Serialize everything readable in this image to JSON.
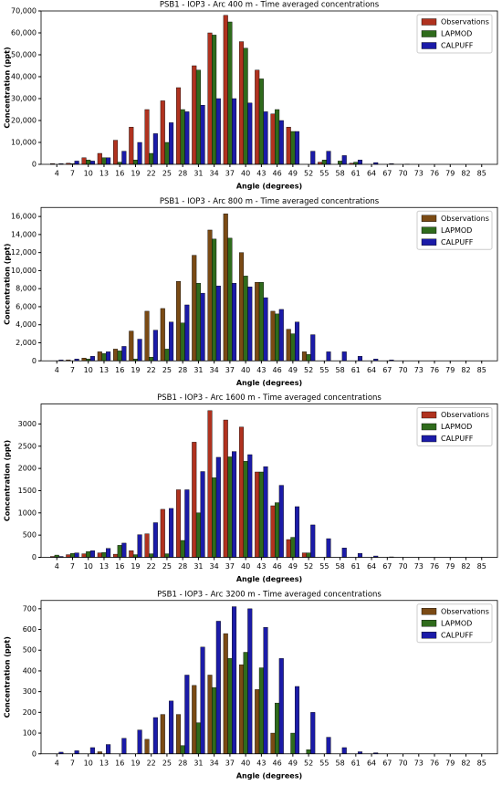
{
  "chart_data": [
    {
      "type": "bar",
      "title": "PSB1 - IOP3 - Arc 400 m - Time averaged concentrations",
      "xlabel": "Angle (degrees)",
      "ylabel": "Concentration (ppt)",
      "legend": "upper right",
      "categories": [
        "4",
        "7",
        "10",
        "13",
        "16",
        "19",
        "22",
        "25",
        "28",
        "31",
        "34",
        "37",
        "40",
        "43",
        "46",
        "49",
        "52",
        "55",
        "58",
        "61",
        "64",
        "67",
        "70",
        "73",
        "76",
        "79",
        "82",
        "85"
      ],
      "ylim": [
        0,
        70000
      ],
      "yticks": [
        0,
        {
          "value": 10000,
          "label": "10,000"
        },
        {
          "value": 20000,
          "label": "20,000"
        },
        {
          "value": 30000,
          "label": "30,000"
        },
        {
          "value": 40000,
          "label": "40,000"
        },
        {
          "value": 50000,
          "label": "50,000"
        },
        {
          "value": 60000,
          "label": "60,000"
        },
        {
          "value": 70000,
          "label": "70,000"
        }
      ],
      "series": [
        {
          "name": "Observations",
          "color": "#b0321f",
          "values": [
            300,
            500,
            3000,
            5000,
            11000,
            17000,
            25000,
            29000,
            35000,
            45000,
            60000,
            68000,
            56000,
            43000,
            23000,
            17000,
            0,
            1000,
            0,
            500,
            0,
            0,
            0,
            0,
            0,
            0,
            0,
            0
          ]
        },
        {
          "name": "LAPMOD",
          "color": "#2f6b1c",
          "values": [
            0,
            300,
            2000,
            3000,
            1000,
            2000,
            5000,
            10000,
            25000,
            43000,
            59000,
            65000,
            53000,
            39000,
            25000,
            15000,
            0,
            2000,
            1500,
            1000,
            0,
            0,
            0,
            0,
            0,
            0,
            0,
            0
          ]
        },
        {
          "name": "CALPUFF",
          "color": "#1b1ba8",
          "values": [
            300,
            1500,
            1500,
            3000,
            6000,
            10000,
            14000,
            19000,
            24000,
            27000,
            30000,
            30000,
            28000,
            24000,
            20000,
            15000,
            6000,
            6000,
            4000,
            2000,
            800,
            300,
            100,
            0,
            0,
            0,
            0,
            0
          ]
        }
      ]
    },
    {
      "type": "bar",
      "title": "PSB1 - IOP3 - Arc 800 m - Time averaged concentrations",
      "xlabel": "Angle (degrees)",
      "ylabel": "Concentration (ppt)",
      "legend": "upper right",
      "categories": [
        "4",
        "7",
        "10",
        "13",
        "16",
        "19",
        "22",
        "25",
        "28",
        "31",
        "34",
        "37",
        "40",
        "43",
        "46",
        "49",
        "52",
        "55",
        "58",
        "61",
        "64",
        "67",
        "70",
        "73",
        "76",
        "79",
        "82",
        "85"
      ],
      "ylim": [
        0,
        17000
      ],
      "yticks": [
        0,
        {
          "value": 2000,
          "label": "2,000"
        },
        {
          "value": 4000,
          "label": "4,000"
        },
        {
          "value": 6000,
          "label": "6,000"
        },
        {
          "value": 8000,
          "label": "8,000"
        },
        {
          "value": 10000,
          "label": "10,000"
        },
        {
          "value": 12000,
          "label": "12,000"
        },
        {
          "value": 14000,
          "label": "14,000"
        },
        {
          "value": 16000,
          "label": "16,000"
        }
      ],
      "series": [
        {
          "name": "Observations",
          "color": "#7a4a14",
          "values": [
            0,
            100,
            300,
            1000,
            1300,
            3300,
            5500,
            5800,
            8800,
            11700,
            14500,
            16300,
            12000,
            8700,
            5500,
            3500,
            1000,
            0,
            0,
            0,
            0,
            0,
            0,
            0,
            0,
            0,
            0,
            0
          ]
        },
        {
          "name": "LAPMOD",
          "color": "#2f6b1c",
          "values": [
            0,
            0,
            200,
            800,
            1100,
            200,
            400,
            1300,
            4200,
            8600,
            13500,
            13600,
            9400,
            8700,
            5200,
            3000,
            700,
            0,
            0,
            0,
            0,
            0,
            0,
            0,
            0,
            0,
            0,
            0
          ]
        },
        {
          "name": "CALPUFF",
          "color": "#1b1ba8",
          "values": [
            100,
            200,
            500,
            1000,
            1600,
            2400,
            3400,
            4300,
            6200,
            7500,
            8300,
            8600,
            8200,
            7000,
            5700,
            4300,
            2900,
            1000,
            1000,
            500,
            200,
            100,
            0,
            0,
            0,
            0,
            0,
            0
          ]
        }
      ]
    },
    {
      "type": "bar",
      "title": "PSB1 - IOP3 - Arc 1600 m - Time averaged concentrations",
      "xlabel": "Angle (degrees)",
      "ylabel": "Concentration (ppt)",
      "legend": "upper right",
      "categories": [
        "4",
        "7",
        "10",
        "13",
        "16",
        "19",
        "22",
        "25",
        "28",
        "31",
        "34",
        "37",
        "40",
        "43",
        "46",
        "49",
        "52",
        "55",
        "58",
        "61",
        "64",
        "67",
        "70",
        "73",
        "76",
        "79",
        "82",
        "85"
      ],
      "ylim": [
        0,
        3450
      ],
      "yticks": [
        0,
        500,
        1000,
        1500,
        2000,
        2500,
        3000
      ],
      "series": [
        {
          "name": "Observations",
          "color": "#b0321f",
          "values": [
            20,
            60,
            80,
            100,
            70,
            150,
            530,
            1080,
            1520,
            2590,
            3300,
            3090,
            2930,
            1920,
            1160,
            400,
            100,
            0,
            0,
            0,
            0,
            0,
            0,
            0,
            0,
            0,
            0,
            0
          ]
        },
        {
          "name": "LAPMOD",
          "color": "#2f6b1c",
          "values": [
            50,
            90,
            130,
            110,
            270,
            60,
            80,
            80,
            380,
            1000,
            1790,
            2260,
            2160,
            1920,
            1230,
            450,
            100,
            0,
            0,
            0,
            0,
            0,
            0,
            0,
            0,
            0,
            0,
            0
          ]
        },
        {
          "name": "CALPUFF",
          "color": "#1b1ba8",
          "values": [
            20,
            100,
            150,
            200,
            320,
            510,
            780,
            1100,
            1520,
            1930,
            2250,
            2380,
            2310,
            2040,
            1620,
            1140,
            730,
            420,
            210,
            90,
            30,
            10,
            0,
            0,
            0,
            0,
            0,
            0
          ]
        }
      ]
    },
    {
      "type": "bar",
      "title": "PSB1 - IOP3 - Arc 3200 m - Time averaged concentrations",
      "xlabel": "Angle (degrees)",
      "ylabel": "Concentration (ppt)",
      "legend": "upper right",
      "categories": [
        "4",
        "7",
        "10",
        "13",
        "16",
        "19",
        "22",
        "25",
        "28",
        "31",
        "34",
        "37",
        "40",
        "43",
        "46",
        "49",
        "52",
        "55",
        "58",
        "61",
        "64",
        "67",
        "70",
        "73",
        "76",
        "79",
        "82",
        "85"
      ],
      "ylim": [
        0,
        740
      ],
      "yticks": [
        0,
        100,
        200,
        300,
        400,
        500,
        600,
        700
      ],
      "series": [
        {
          "name": "Observations",
          "color": "#7a4a14",
          "values": [
            0,
            0,
            0,
            10,
            0,
            0,
            70,
            190,
            190,
            330,
            380,
            580,
            430,
            310,
            100,
            0,
            0,
            0,
            0,
            0,
            0,
            0,
            0,
            0,
            0,
            0,
            0,
            0
          ]
        },
        {
          "name": "LAPMOD",
          "color": "#2f6b1c",
          "values": [
            0,
            0,
            0,
            0,
            0,
            0,
            0,
            0,
            40,
            150,
            320,
            460,
            490,
            415,
            245,
            100,
            20,
            0,
            0,
            0,
            0,
            0,
            0,
            0,
            0,
            0,
            0,
            0
          ]
        },
        {
          "name": "CALPUFF",
          "color": "#1b1ba8",
          "values": [
            8,
            15,
            30,
            45,
            75,
            115,
            175,
            255,
            380,
            515,
            640,
            710,
            700,
            610,
            460,
            325,
            200,
            80,
            30,
            10,
            5,
            0,
            0,
            0,
            0,
            0,
            0,
            0
          ]
        }
      ]
    }
  ]
}
